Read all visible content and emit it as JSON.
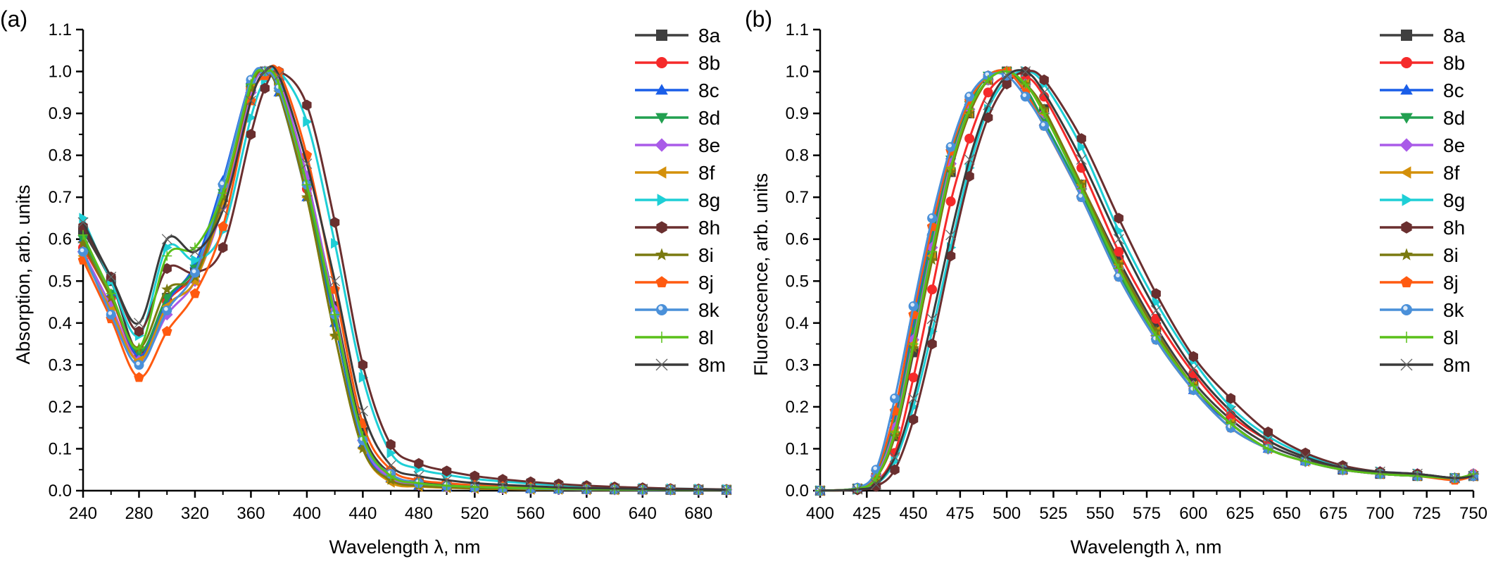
{
  "chart_data": [
    {
      "id": "a",
      "type": "line",
      "panel_label": "(a)",
      "title": "",
      "xlabel": "Wavelength λ, nm",
      "ylabel": "Absorption, arb. units",
      "xlim": [
        240,
        700
      ],
      "ylim": [
        0.0,
        1.1
      ],
      "xticks": [
        240,
        280,
        320,
        360,
        400,
        440,
        480,
        520,
        560,
        600,
        640,
        680
      ],
      "xtick_labels": [
        "240",
        "280",
        "320",
        "360",
        "400",
        "440",
        "480",
        "520",
        "560",
        "600",
        "640",
        "680"
      ],
      "yticks": [
        0.0,
        0.1,
        0.2,
        0.3,
        0.4,
        0.5,
        0.6,
        0.7,
        0.8,
        0.9,
        1.0,
        1.1
      ],
      "ytick_labels": [
        "0.0",
        "0.1",
        "0.2",
        "0.3",
        "0.4",
        "0.5",
        "0.6",
        "0.7",
        "0.8",
        "0.9",
        "1.0",
        "1.1"
      ],
      "grid": false,
      "legend_position": "top-right",
      "x": [
        240,
        260,
        280,
        300,
        320,
        340,
        360,
        370,
        380,
        400,
        420,
        440,
        460,
        480,
        500,
        520,
        540,
        560,
        580,
        600,
        620,
        640,
        660,
        680,
        700
      ],
      "series": [
        {
          "name": "8a",
          "values": [
            0.62,
            0.5,
            0.33,
            0.46,
            0.52,
            0.7,
            0.96,
            1.0,
            0.98,
            0.74,
            0.44,
            0.14,
            0.04,
            0.02,
            0.014,
            0.01,
            0.008,
            0.006,
            0.005,
            0.004,
            0.003,
            0.003,
            0.002,
            0.002,
            0.002
          ]
        },
        {
          "name": "8b",
          "values": [
            0.58,
            0.46,
            0.32,
            0.45,
            0.52,
            0.7,
            0.96,
            1.0,
            0.97,
            0.72,
            0.42,
            0.12,
            0.03,
            0.015,
            0.01,
            0.008,
            0.006,
            0.005,
            0.004,
            0.003,
            0.003,
            0.002,
            0.002,
            0.002,
            0.002
          ]
        },
        {
          "name": "8c",
          "values": [
            0.6,
            0.47,
            0.32,
            0.45,
            0.54,
            0.74,
            0.98,
            1.0,
            0.95,
            0.7,
            0.4,
            0.11,
            0.03,
            0.012,
            0.008,
            0.006,
            0.005,
            0.004,
            0.003,
            0.003,
            0.002,
            0.002,
            0.002,
            0.002,
            0.002
          ]
        },
        {
          "name": "8d",
          "values": [
            0.6,
            0.47,
            0.33,
            0.46,
            0.53,
            0.71,
            0.96,
            1.0,
            0.97,
            0.72,
            0.41,
            0.12,
            0.03,
            0.014,
            0.01,
            0.007,
            0.006,
            0.005,
            0.004,
            0.003,
            0.003,
            0.002,
            0.002,
            0.002,
            0.002
          ]
        },
        {
          "name": "8e",
          "values": [
            0.57,
            0.44,
            0.31,
            0.42,
            0.5,
            0.68,
            0.95,
            1.0,
            0.98,
            0.75,
            0.43,
            0.12,
            0.03,
            0.014,
            0.01,
            0.008,
            0.006,
            0.005,
            0.004,
            0.003,
            0.003,
            0.002,
            0.002,
            0.002,
            0.002
          ]
        },
        {
          "name": "8f",
          "values": [
            0.56,
            0.43,
            0.31,
            0.44,
            0.5,
            0.69,
            0.96,
            1.0,
            0.96,
            0.7,
            0.37,
            0.1,
            0.02,
            0.01,
            0.007,
            0.005,
            0.004,
            0.003,
            0.003,
            0.002,
            0.002,
            0.002,
            0.002,
            0.002,
            0.002
          ]
        },
        {
          "name": "8g",
          "values": [
            0.65,
            0.5,
            0.37,
            0.58,
            0.55,
            0.62,
            0.89,
            0.98,
            1.0,
            0.88,
            0.59,
            0.27,
            0.09,
            0.052,
            0.038,
            0.028,
            0.022,
            0.017,
            0.013,
            0.01,
            0.008,
            0.006,
            0.005,
            0.004,
            0.003
          ]
        },
        {
          "name": "8h",
          "values": [
            0.63,
            0.51,
            0.38,
            0.53,
            0.52,
            0.58,
            0.85,
            0.96,
            1.0,
            0.92,
            0.64,
            0.3,
            0.11,
            0.065,
            0.047,
            0.035,
            0.027,
            0.021,
            0.016,
            0.012,
            0.009,
            0.007,
            0.005,
            0.004,
            0.003
          ]
        },
        {
          "name": "8i",
          "values": [
            0.59,
            0.46,
            0.34,
            0.48,
            0.51,
            0.7,
            0.96,
            1.0,
            0.95,
            0.7,
            0.37,
            0.1,
            0.025,
            0.012,
            0.008,
            0.006,
            0.005,
            0.004,
            0.003,
            0.003,
            0.002,
            0.002,
            0.002,
            0.002,
            0.002
          ]
        },
        {
          "name": "8j",
          "values": [
            0.55,
            0.41,
            0.27,
            0.38,
            0.47,
            0.63,
            0.93,
            0.99,
            1.0,
            0.8,
            0.48,
            0.16,
            0.05,
            0.025,
            0.018,
            0.013,
            0.01,
            0.008,
            0.006,
            0.005,
            0.004,
            0.003,
            0.003,
            0.002,
            0.002
          ]
        },
        {
          "name": "8k",
          "values": [
            0.57,
            0.42,
            0.3,
            0.43,
            0.52,
            0.73,
            0.98,
            1.0,
            0.96,
            0.73,
            0.42,
            0.12,
            0.04,
            0.018,
            0.012,
            0.009,
            0.007,
            0.005,
            0.004,
            0.003,
            0.003,
            0.002,
            0.002,
            0.002,
            0.002
          ]
        },
        {
          "name": "8l",
          "values": [
            0.61,
            0.47,
            0.34,
            0.56,
            0.58,
            0.71,
            0.97,
            1.0,
            0.97,
            0.73,
            0.42,
            0.13,
            0.035,
            0.018,
            0.012,
            0.009,
            0.007,
            0.006,
            0.005,
            0.004,
            0.003,
            0.003,
            0.002,
            0.002,
            0.002
          ]
        },
        {
          "name": "8m",
          "values": [
            0.64,
            0.51,
            0.4,
            0.6,
            0.57,
            0.67,
            0.93,
            1.0,
            0.99,
            0.78,
            0.5,
            0.19,
            0.06,
            0.035,
            0.025,
            0.018,
            0.014,
            0.011,
            0.008,
            0.006,
            0.005,
            0.004,
            0.003,
            0.003,
            0.002
          ]
        }
      ]
    },
    {
      "id": "b",
      "type": "line",
      "panel_label": "(b)",
      "title": "",
      "xlabel": "Wavelength λ, nm",
      "ylabel": "Fluorescence, arb. units",
      "xlim": [
        400,
        750
      ],
      "ylim": [
        0.0,
        1.1
      ],
      "xticks": [
        400,
        425,
        450,
        475,
        500,
        525,
        550,
        575,
        600,
        625,
        650,
        675,
        700,
        725,
        750
      ],
      "xtick_labels": [
        "400",
        "425",
        "450",
        "475",
        "500",
        "525",
        "550",
        "575",
        "600",
        "625",
        "650",
        "675",
        "700",
        "725",
        "750"
      ],
      "yticks": [
        0.0,
        0.1,
        0.2,
        0.3,
        0.4,
        0.5,
        0.6,
        0.7,
        0.8,
        0.9,
        1.0,
        1.1
      ],
      "ytick_labels": [
        "0.0",
        "0.1",
        "0.2",
        "0.3",
        "0.4",
        "0.5",
        "0.6",
        "0.7",
        "0.8",
        "0.9",
        "1.0",
        "1.1"
      ],
      "grid": false,
      "legend_position": "top-right",
      "x": [
        400,
        420,
        430,
        440,
        450,
        460,
        470,
        480,
        490,
        500,
        510,
        520,
        540,
        560,
        580,
        600,
        620,
        640,
        660,
        680,
        700,
        720,
        740,
        750
      ],
      "series": [
        {
          "name": "8a",
          "values": [
            0.0,
            0.005,
            0.03,
            0.13,
            0.33,
            0.56,
            0.76,
            0.9,
            0.98,
            1.0,
            0.97,
            0.91,
            0.73,
            0.55,
            0.39,
            0.26,
            0.17,
            0.11,
            0.075,
            0.05,
            0.04,
            0.035,
            0.03,
            0.035
          ]
        },
        {
          "name": "8b",
          "values": [
            0.0,
            0.004,
            0.02,
            0.09,
            0.27,
            0.48,
            0.69,
            0.84,
            0.95,
            0.99,
            0.99,
            0.94,
            0.77,
            0.57,
            0.41,
            0.28,
            0.18,
            0.12,
            0.08,
            0.055,
            0.045,
            0.04,
            0.03,
            0.04
          ]
        },
        {
          "name": "8c",
          "values": [
            0.0,
            0.006,
            0.04,
            0.18,
            0.4,
            0.62,
            0.8,
            0.93,
            0.99,
            1.0,
            0.95,
            0.88,
            0.71,
            0.52,
            0.37,
            0.24,
            0.16,
            0.1,
            0.07,
            0.05,
            0.04,
            0.035,
            0.03,
            0.035
          ]
        },
        {
          "name": "8d",
          "values": [
            0.0,
            0.006,
            0.04,
            0.16,
            0.38,
            0.6,
            0.79,
            0.92,
            0.99,
            1.0,
            0.96,
            0.88,
            0.71,
            0.52,
            0.36,
            0.24,
            0.15,
            0.1,
            0.07,
            0.05,
            0.04,
            0.035,
            0.03,
            0.035
          ]
        },
        {
          "name": "8e",
          "values": [
            0.0,
            0.006,
            0.035,
            0.15,
            0.36,
            0.58,
            0.78,
            0.91,
            0.98,
            1.0,
            0.97,
            0.9,
            0.72,
            0.53,
            0.37,
            0.25,
            0.16,
            0.1,
            0.07,
            0.05,
            0.045,
            0.04,
            0.03,
            0.04
          ]
        },
        {
          "name": "8f",
          "values": [
            0.0,
            0.005,
            0.03,
            0.14,
            0.35,
            0.56,
            0.77,
            0.9,
            0.98,
            1.0,
            0.97,
            0.9,
            0.73,
            0.54,
            0.38,
            0.25,
            0.16,
            0.1,
            0.07,
            0.05,
            0.04,
            0.035,
            0.03,
            0.035
          ]
        },
        {
          "name": "8g",
          "values": [
            0.0,
            0.003,
            0.015,
            0.07,
            0.2,
            0.38,
            0.58,
            0.77,
            0.91,
            0.98,
            1.0,
            0.97,
            0.82,
            0.62,
            0.45,
            0.31,
            0.2,
            0.13,
            0.085,
            0.055,
            0.045,
            0.04,
            0.03,
            0.035
          ]
        },
        {
          "name": "8h",
          "values": [
            0.0,
            0.002,
            0.01,
            0.05,
            0.17,
            0.35,
            0.56,
            0.75,
            0.89,
            0.97,
            1.0,
            0.98,
            0.84,
            0.65,
            0.47,
            0.32,
            0.22,
            0.14,
            0.09,
            0.06,
            0.045,
            0.04,
            0.03,
            0.035
          ]
        },
        {
          "name": "8i",
          "values": [
            0.0,
            0.005,
            0.03,
            0.13,
            0.34,
            0.55,
            0.76,
            0.9,
            0.98,
            1.0,
            0.97,
            0.91,
            0.73,
            0.54,
            0.38,
            0.25,
            0.16,
            0.1,
            0.07,
            0.05,
            0.04,
            0.035,
            0.03,
            0.035
          ]
        },
        {
          "name": "8j",
          "values": [
            0.0,
            0.006,
            0.045,
            0.19,
            0.42,
            0.63,
            0.81,
            0.93,
            0.99,
            1.0,
            0.95,
            0.87,
            0.7,
            0.51,
            0.36,
            0.24,
            0.15,
            0.1,
            0.07,
            0.05,
            0.04,
            0.035,
            0.025,
            0.035
          ]
        },
        {
          "name": "8k",
          "values": [
            0.0,
            0.007,
            0.05,
            0.22,
            0.44,
            0.65,
            0.82,
            0.94,
            0.99,
            0.99,
            0.94,
            0.87,
            0.7,
            0.51,
            0.36,
            0.24,
            0.15,
            0.1,
            0.07,
            0.05,
            0.04,
            0.035,
            0.03,
            0.035
          ]
        },
        {
          "name": "8l",
          "values": [
            0.0,
            0.005,
            0.03,
            0.14,
            0.35,
            0.57,
            0.77,
            0.91,
            0.98,
            1.0,
            0.97,
            0.9,
            0.72,
            0.53,
            0.37,
            0.25,
            0.16,
            0.1,
            0.07,
            0.05,
            0.04,
            0.035,
            0.03,
            0.04
          ]
        },
        {
          "name": "8m",
          "values": [
            0.0,
            0.003,
            0.015,
            0.08,
            0.22,
            0.41,
            0.61,
            0.79,
            0.92,
            0.99,
            1.0,
            0.95,
            0.79,
            0.6,
            0.43,
            0.29,
            0.19,
            0.12,
            0.08,
            0.055,
            0.045,
            0.04,
            0.03,
            0.035
          ]
        }
      ]
    }
  ],
  "legend": {
    "entries": [
      {
        "name": "8a",
        "color": "#3f3f3f",
        "marker": "square"
      },
      {
        "name": "8b",
        "color": "#f52a2a",
        "marker": "circle"
      },
      {
        "name": "8c",
        "color": "#1a5ee8",
        "marker": "triangle-up"
      },
      {
        "name": "8d",
        "color": "#22a050",
        "marker": "triangle-down"
      },
      {
        "name": "8e",
        "color": "#a95be8",
        "marker": "diamond"
      },
      {
        "name": "8f",
        "color": "#d4900a",
        "marker": "triangle-left"
      },
      {
        "name": "8g",
        "color": "#1ecfd6",
        "marker": "triangle-right"
      },
      {
        "name": "8h",
        "color": "#6a2f2f",
        "marker": "hexagon"
      },
      {
        "name": "8i",
        "color": "#7a7a10",
        "marker": "star"
      },
      {
        "name": "8j",
        "color": "#ff5a10",
        "marker": "pentagon"
      },
      {
        "name": "8k",
        "color": "#4a90d9",
        "marker": "sphere"
      },
      {
        "name": "8l",
        "color": "#5ac01a",
        "marker": "plus"
      },
      {
        "name": "8m",
        "color": "#3a3a3a",
        "marker": "x"
      }
    ]
  }
}
